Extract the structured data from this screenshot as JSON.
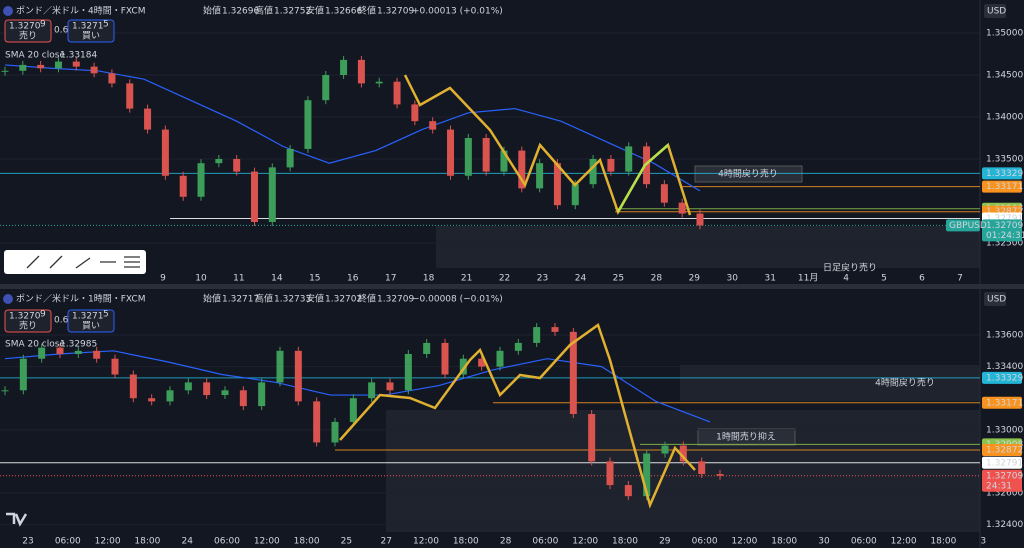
{
  "panels": [
    {
      "header": {
        "symbol": "ポンド／米ドル・4時間・FXCM",
        "open_label": "始値",
        "open": "1.32696",
        "high_label": "高値",
        "high": "1.32752",
        "low_label": "安値",
        "low": "1.32666",
        "close_label": "終値",
        "close": "1.32709",
        "change": "+0.00013 (+0.01%)",
        "change_color": "#26a69a"
      },
      "sell": {
        "price": "1.3270",
        "sup": "9",
        "label": "売り"
      },
      "spread": "0.6",
      "buy": {
        "price": "1.3271",
        "sup": "5",
        "label": "買い"
      },
      "sma_label": "SMA 20 close",
      "sma_value": "1.33184",
      "currency": "USD",
      "ylim": [
        1.32202,
        1.35393
      ],
      "yticks": [
        {
          "value": 1.35,
          "label": "1.35000"
        },
        {
          "value": 1.345,
          "label": "1.34500"
        },
        {
          "value": 1.34,
          "label": "1.34000"
        },
        {
          "value": 1.335,
          "label": "1.33500"
        },
        {
          "value": 1.325,
          "label": "1.32500"
        }
      ],
      "xticks": [
        "9",
        "10",
        "11",
        "14",
        "15",
        "16",
        "17",
        "18",
        "21",
        "22",
        "23",
        "24",
        "25",
        "28",
        "29",
        "30",
        "31",
        "11月",
        "4",
        "5",
        "6",
        "7"
      ],
      "closes": [
        1.3455,
        1.3462,
        1.3458,
        1.3466,
        1.346,
        1.3452,
        1.344,
        1.341,
        1.3385,
        1.333,
        1.3305,
        1.3345,
        1.335,
        1.3335,
        1.3275,
        1.334,
        1.3362,
        1.342,
        1.345,
        1.3468,
        1.344,
        1.3442,
        1.3415,
        1.3395,
        1.3385,
        1.333,
        1.3375,
        1.3335,
        1.336,
        1.3315,
        1.3345,
        1.3295,
        1.332,
        1.335,
        1.3335,
        1.3365,
        1.332,
        1.3298,
        1.3285,
        1.32709
      ],
      "sma": [
        1.3462,
        1.3458,
        1.3455,
        1.3445,
        1.342,
        1.3395,
        1.3365,
        1.3345,
        1.336,
        1.3385,
        1.3405,
        1.341,
        1.3395,
        1.337,
        1.3345,
        1.3312
      ],
      "price_tags": [
        {
          "value": 1.33329,
          "label": "1.33329",
          "color": "#22b5d6"
        },
        {
          "value": 1.33171,
          "label": "1.33171",
          "color": "#f7931e"
        },
        {
          "value": 1.32908,
          "label": "1.32908",
          "color": "#8bc34a"
        },
        {
          "value": 1.32872,
          "label": "1.32872",
          "color": "#f7931e"
        },
        {
          "value": 1.32791,
          "label": "1.32791",
          "color": "#ffffff"
        }
      ],
      "last_tag": {
        "value": 1.32709,
        "label": "1.32709",
        "countdown": "01:24:31",
        "symbol": "GBPUSD",
        "color": "#26a69a"
      },
      "annotations": [
        "4時間戻り売り",
        "日足戻り売り"
      ]
    },
    {
      "header": {
        "symbol": "ポンド／米ドル・1時間・FXCM",
        "open_label": "始値",
        "open": "1.32717",
        "high_label": "高値",
        "high": "1.32733",
        "low_label": "安値",
        "low": "1.32702",
        "close_label": "終値",
        "close": "1.32709",
        "change": "−0.00008 (−0.01%)",
        "change_color": "#ef5350"
      },
      "sell": {
        "price": "1.3270",
        "sup": "9",
        "label": "売り"
      },
      "spread": "0.6",
      "buy": {
        "price": "1.3271",
        "sup": "5",
        "label": "買い"
      },
      "sma_label": "SMA 20 close",
      "sma_value": "1.32985",
      "currency": "USD",
      "ylim": [
        1.32353,
        1.33885
      ],
      "yticks": [
        {
          "value": 1.336,
          "label": "1.33600"
        },
        {
          "value": 1.334,
          "label": "1.33400"
        },
        {
          "value": 1.33,
          "label": "1.33000"
        },
        {
          "value": 1.326,
          "label": "1.32600"
        },
        {
          "value": 1.324,
          "label": "1.32400"
        }
      ],
      "xticks": [
        "23",
        "06:00",
        "12:00",
        "18:00",
        "24",
        "06:00",
        "12:00",
        "18:00",
        "25",
        "27",
        "12:00",
        "18:00",
        "28",
        "06:00",
        "12:00",
        "18:00",
        "29",
        "06:00",
        "12:00",
        "18:00",
        "30",
        "06:00",
        "12:00",
        "18:00",
        "3"
      ],
      "closes": [
        1.3325,
        1.3345,
        1.3352,
        1.3348,
        1.335,
        1.3345,
        1.3335,
        1.332,
        1.3318,
        1.3325,
        1.333,
        1.3322,
        1.3325,
        1.3315,
        1.333,
        1.335,
        1.3318,
        1.3292,
        1.3305,
        1.332,
        1.333,
        1.3325,
        1.3348,
        1.3355,
        1.3335,
        1.3345,
        1.334,
        1.335,
        1.3355,
        1.3365,
        1.3362,
        1.331,
        1.328,
        1.3265,
        1.3258,
        1.3285,
        1.329,
        1.328,
        1.3272,
        1.32709
      ],
      "sma": [
        1.3345,
        1.3348,
        1.335,
        1.3343,
        1.3335,
        1.333,
        1.3322,
        1.3322,
        1.3328,
        1.3338,
        1.3345,
        1.334,
        1.3318,
        1.3305
      ],
      "price_tags": [
        {
          "value": 1.33329,
          "label": "1.33329",
          "color": "#22b5d6"
        },
        {
          "value": 1.33171,
          "label": "1.33171",
          "color": "#f7931e"
        },
        {
          "value": 1.32908,
          "label": "1.32908",
          "color": "#8bc34a"
        },
        {
          "value": 1.32872,
          "label": "1.32872",
          "color": "#f7931e"
        },
        {
          "value": 1.32791,
          "label": "1.32791",
          "color": "#ffffff"
        }
      ],
      "last_tag": {
        "value": 1.32709,
        "label": "1.32709",
        "countdown": "24:31",
        "color": "#ef5350"
      },
      "annotations": [
        "4時間戻り売り",
        "1時間売り抑え"
      ]
    }
  ]
}
